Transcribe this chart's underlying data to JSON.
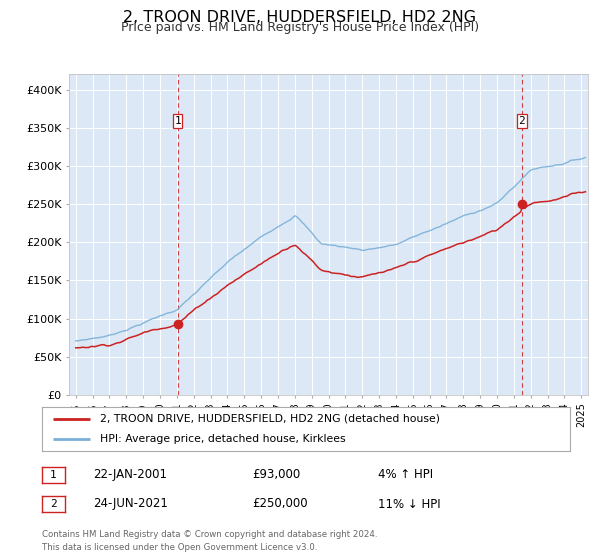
{
  "title": "2, TROON DRIVE, HUDDERSFIELD, HD2 2NG",
  "subtitle": "Price paid vs. HM Land Registry's House Price Index (HPI)",
  "title_fontsize": 11.5,
  "subtitle_fontsize": 9,
  "background_color": "#ffffff",
  "plot_bg_color": "#dce8f5",
  "grid_color": "#ffffff",
  "red_line_color": "#cc2222",
  "blue_line_color": "#7ab0d8",
  "marker1_date_x": 2001.05,
  "marker1_y": 93000,
  "marker2_date_x": 2021.48,
  "marker2_y": 250000,
  "vline1_x": 2001.05,
  "vline2_x": 2021.48,
  "ylim": [
    0,
    420000
  ],
  "xlim": [
    1994.6,
    2025.4
  ],
  "yticks": [
    0,
    50000,
    100000,
    150000,
    200000,
    250000,
    300000,
    350000,
    400000
  ],
  "ytick_labels": [
    "£0",
    "£50K",
    "£100K",
    "£150K",
    "£200K",
    "£250K",
    "£300K",
    "£350K",
    "£400K"
  ],
  "xticks": [
    1995,
    1996,
    1997,
    1998,
    1999,
    2000,
    2001,
    2002,
    2003,
    2004,
    2005,
    2006,
    2007,
    2008,
    2009,
    2010,
    2011,
    2012,
    2013,
    2014,
    2015,
    2016,
    2017,
    2018,
    2019,
    2020,
    2021,
    2022,
    2023,
    2024,
    2025
  ],
  "legend_label_red": "2, TROON DRIVE, HUDDERSFIELD, HD2 2NG (detached house)",
  "legend_label_blue": "HPI: Average price, detached house, Kirklees",
  "note1_num": "1",
  "note1_date": "22-JAN-2001",
  "note1_price": "£93,000",
  "note1_hpi": "4% ↑ HPI",
  "note2_num": "2",
  "note2_date": "24-JUN-2021",
  "note2_price": "£250,000",
  "note2_hpi": "11% ↓ HPI",
  "footer": "Contains HM Land Registry data © Crown copyright and database right 2024.\nThis data is licensed under the Open Government Licence v3.0."
}
